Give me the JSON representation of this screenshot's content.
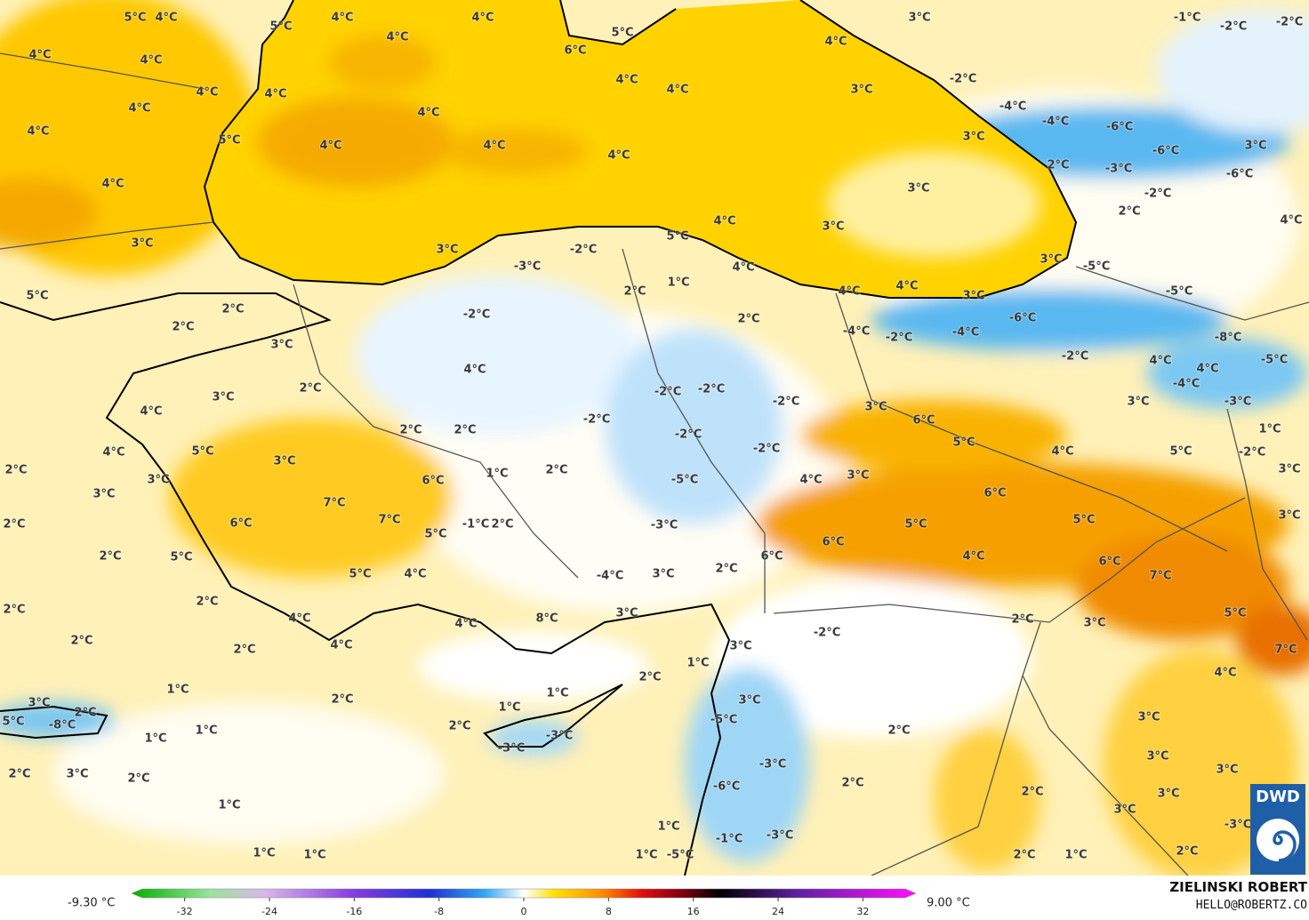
{
  "map": {
    "labels": [
      "5°C",
      "4°C",
      "5°C",
      "4°C",
      "4°C",
      "4°C",
      "5°C",
      "6°C",
      "4°C",
      "3°C",
      "-1°C",
      "-2°C",
      "-2°C",
      "4°C",
      "4°C",
      "4°C",
      "4°C",
      "4°C",
      "4°C",
      "3°C",
      "-2°C",
      "4°C",
      "4°C",
      "4°C",
      "5°C",
      "4°C",
      "4°C",
      "4°C",
      "3°C",
      "-4°C",
      "-4°C",
      "-6°C",
      "3°C",
      "2°C",
      "-3°C",
      "-6°C",
      "-6°C",
      "3°C",
      "4°C",
      "-2°C",
      "2°C",
      "4°C",
      "4°C",
      "3°C",
      "5°C",
      "3°C",
      "3°C",
      "-2°C",
      "3°C",
      "-5°C",
      "4°C",
      "-3°C",
      "5°C",
      "1°C",
      "2°C",
      "4°C",
      "4°C",
      "3°C",
      "-5°C",
      "2°C",
      "-2°C",
      "2°C",
      "-6°C",
      "2°C",
      "-4°C",
      "-2°C",
      "-4°C",
      "-8°C",
      "3°C",
      "-2°C",
      "4°C",
      "4°C",
      "-5°C",
      "4°C",
      "2°C",
      "-2°C",
      "-2°C",
      "-2°C",
      "-4°C",
      "3°C",
      "3°C",
      "-3°C",
      "4°C",
      "3°C",
      "6°C",
      "-2°C",
      "2°C",
      "2°C",
      "-2°C",
      "1°C",
      "-2°C",
      "5°C",
      "4°C",
      "5°C",
      "3°C",
      "4°C",
      "5°C",
      "-2°C",
      "2°C",
      "1°C",
      "2°C",
      "3°C",
      "3°C",
      "6°C",
      "-5°C",
      "4°C",
      "3°C",
      "6°C",
      "3°C",
      "7°C",
      "3°C",
      "7°C",
      "6°C",
      "2°C",
      "-1°C",
      "2°C",
      "-3°C",
      "5°C",
      "5°C",
      "5°C",
      "6°C",
      "2°C",
      "5°C",
      "6°C",
      "4°C",
      "6°C",
      "5°C",
      "4°C",
      "-4°C",
      "3°C",
      "2°C",
      "7°C",
      "2°C",
      "2°C",
      "8°C",
      "3°C",
      "4°C",
      "4°C",
      "2°C",
      "3°C",
      "5°C",
      "-2°C",
      "2°C",
      "4°C",
      "3°C",
      "2°C",
      "7°C",
      "1°C",
      "4°C",
      "2°C",
      "1°C",
      "1°C",
      "2°C",
      "3°C",
      "2°C",
      "1°C",
      "3°C",
      "2°C",
      "5°C",
      "-8°C",
      "2°C",
      "-5°C",
      "3°C",
      "1°C",
      "-3°C",
      "1°C",
      "-3°C",
      "3°C",
      "-3°C",
      "3°C",
      "2°C",
      "3°C",
      "2°C",
      "-6°C",
      "2°C",
      "2°C",
      "3°C",
      "1°C",
      "3°C",
      "1°C",
      "-3°C",
      "-3°C",
      "-1°C",
      "2°C",
      "1°C",
      "1°C",
      "1°C",
      "-5°C",
      "2°C",
      "1°C"
    ],
    "colorbar": {
      "min_label": "-9.30 °C",
      "max_label": "9.00 °C",
      "ticks": [
        -32,
        -24,
        -16,
        -8,
        0,
        8,
        16,
        24,
        32
      ]
    },
    "credit": {
      "author": "ZIELINSKI ROBERT",
      "contact": "HELLO@ROBERTZ.CO",
      "logo": "DWD"
    }
  }
}
